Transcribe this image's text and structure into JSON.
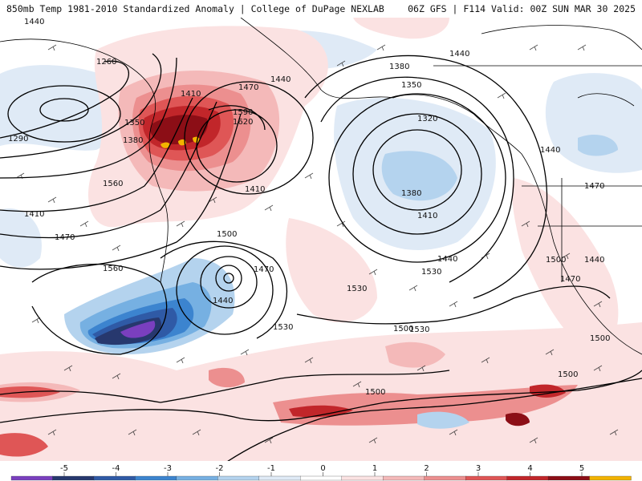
{
  "header": {
    "left_title": "850mb Temp 1981-2010 Standardized Anomaly | College of DuPage NEXLAB",
    "right_title": "06Z GFS | F114 Valid: 00Z SUN MAR 30 2025"
  },
  "contour_labels": [
    "1260",
    "1290",
    "1350",
    "1380",
    "1410",
    "1440",
    "1470",
    "1560",
    "1590",
    "1620",
    "1410",
    "1380",
    "1350",
    "1320",
    "1380",
    "1410",
    "1440",
    "1440",
    "1440",
    "1470",
    "1470",
    "1500",
    "1530",
    "1500",
    "1470",
    "1440",
    "1560",
    "1530",
    "1530",
    "1530",
    "1500",
    "1500",
    "1500",
    "1500",
    "1440",
    "1410",
    "1470",
    "1440"
  ],
  "colorbar": {
    "ticks": [
      "-5",
      "-4",
      "-3",
      "-2",
      "-1",
      "0",
      "1",
      "2",
      "3",
      "4",
      "5"
    ],
    "colors": [
      "#7a3fbf",
      "#27386e",
      "#2f5aa6",
      "#3c84cf",
      "#76b0e2",
      "#b4d3ee",
      "#dfeaf6",
      "#ffffff",
      "#fbe2e2",
      "#f4b9b9",
      "#ec8f8f",
      "#df5656",
      "#c1262a",
      "#8c0e16",
      "#f2b300"
    ]
  },
  "map_icons": [
    "coastline-icon",
    "barb-icon"
  ]
}
